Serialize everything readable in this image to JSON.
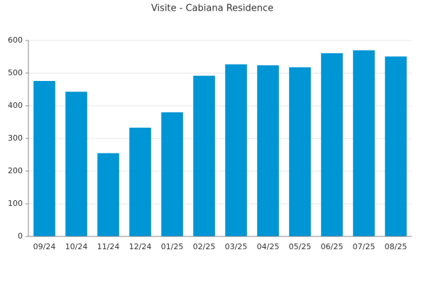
{
  "chart_data": {
    "type": "bar",
    "title": "Visite - Cabiana Residence",
    "categories": [
      "09/24",
      "10/24",
      "11/24",
      "12/24",
      "01/25",
      "02/25",
      "03/25",
      "04/25",
      "05/25",
      "06/25",
      "07/25",
      "08/25"
    ],
    "values": [
      476,
      443,
      255,
      333,
      380,
      492,
      527,
      524,
      518,
      561,
      570,
      551
    ],
    "color": "#0095d5",
    "ylim": [
      0,
      600
    ],
    "yticks": [
      0,
      100,
      200,
      300,
      400,
      500,
      600
    ],
    "grid": true
  }
}
